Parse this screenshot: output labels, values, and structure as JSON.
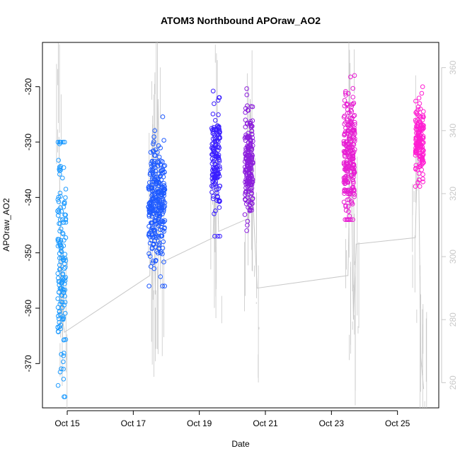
{
  "chart_data": {
    "type": "scatter",
    "title": "ATOM3 Northbound APOraw_AO2",
    "xlabel": "Date",
    "ylabel": "APOraw_AO2",
    "x_ticks": [
      {
        "date": "2023-10-15",
        "label": "Oct 15"
      },
      {
        "date": "2023-10-17",
        "label": "Oct 17"
      },
      {
        "date": "2023-10-19",
        "label": "Oct 19"
      },
      {
        "date": "2023-10-21",
        "label": "Oct 21"
      },
      {
        "date": "2023-10-23",
        "label": "Oct 23"
      },
      {
        "date": "2023-10-25",
        "label": "Oct 25"
      }
    ],
    "xlim": [
      "2023-10-14 06:00",
      "2023-10-26 06:00"
    ],
    "left_axis": {
      "ylim": [
        -378,
        -312
      ],
      "ticks": [
        -320,
        -330,
        -340,
        -350,
        -360,
        -370
      ]
    },
    "right_axis": {
      "ylim": [
        252,
        368
      ],
      "ticks": [
        260,
        280,
        300,
        320,
        340,
        360
      ],
      "color": "#c8c8c8"
    },
    "series": [
      {
        "kind": "points",
        "axis": "left",
        "color": "#1e9bff",
        "x_center": "2023-10-14 20:00",
        "x_spread_hours": 3,
        "y_mean": -352,
        "y_sd": 11,
        "y_min": -376,
        "y_max": -330,
        "count": 150
      },
      {
        "kind": "points",
        "axis": "left",
        "color": "#1e5aff",
        "x_center": "2023-10-17 17:00",
        "x_spread_hours": 6,
        "y_mean": -341,
        "y_sd": 5,
        "y_min": -356,
        "y_max": -323,
        "count": 300
      },
      {
        "kind": "points",
        "axis": "left",
        "color": "#3a1eff",
        "x_center": "2023-10-19 12:00",
        "x_spread_hours": 3,
        "y_mean": -333,
        "y_sd": 5,
        "y_min": -347,
        "y_max": -320,
        "count": 150
      },
      {
        "kind": "points",
        "axis": "left",
        "color": "#8c1edc",
        "x_center": "2023-10-20 12:00",
        "x_spread_hours": 3,
        "y_mean": -334,
        "y_sd": 5,
        "y_min": -346,
        "y_max": -317,
        "count": 200
      },
      {
        "kind": "points",
        "axis": "left",
        "color": "#e61ed2",
        "x_center": "2023-10-23 13:00",
        "x_spread_hours": 4,
        "y_mean": -332,
        "y_sd": 6,
        "y_min": -344,
        "y_max": -314,
        "count": 240
      },
      {
        "kind": "points",
        "axis": "left",
        "color": "#ff1ed2",
        "x_center": "2023-10-25 16:00",
        "x_spread_hours": 3,
        "y_mean": -330,
        "y_sd": 4,
        "y_min": -338,
        "y_max": -320,
        "count": 160
      },
      {
        "kind": "line",
        "axis": "right",
        "color": "#c8c8c8",
        "points": [
          [
            "2023-10-14 18:00",
            338
          ],
          [
            "2023-10-14 20:00",
            282
          ],
          [
            "2023-10-14 22:00",
            276
          ],
          [
            "2023-10-17 12:00",
            294
          ],
          [
            "2023-10-17 14:00",
            342
          ],
          [
            "2023-10-17 16:00",
            288
          ],
          [
            "2023-10-17 18:00",
            350
          ],
          [
            "2023-10-17 20:00",
            298
          ],
          [
            "2023-10-19 10:00",
            306
          ],
          [
            "2023-10-19 12:00",
            338
          ],
          [
            "2023-10-19 14:00",
            308
          ],
          [
            "2023-10-20 11:00",
            312
          ],
          [
            "2023-10-20 13:00",
            350
          ],
          [
            "2023-10-20 15:00",
            318
          ],
          [
            "2023-10-20 18:00",
            290
          ],
          [
            "2023-10-23 12:00",
            294
          ],
          [
            "2023-10-23 14:00",
            340
          ],
          [
            "2023-10-23 16:00",
            280
          ],
          [
            "2023-10-23 18:00",
            304
          ],
          [
            "2023-10-25 13:00",
            306
          ],
          [
            "2023-10-25 15:00",
            342
          ],
          [
            "2023-10-25 17:00",
            268
          ],
          [
            "2023-10-25 19:00",
            258
          ]
        ]
      }
    ]
  }
}
